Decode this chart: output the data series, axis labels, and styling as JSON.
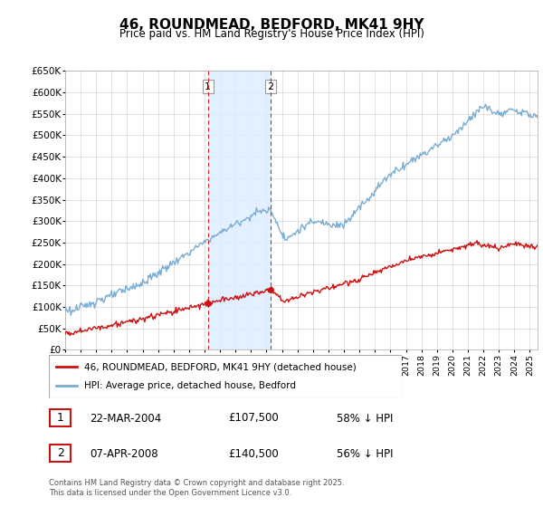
{
  "title": "46, ROUNDMEAD, BEDFORD, MK41 9HY",
  "subtitle": "Price paid vs. HM Land Registry's House Price Index (HPI)",
  "ylabel_ticks": [
    "£0",
    "£50K",
    "£100K",
    "£150K",
    "£200K",
    "£250K",
    "£300K",
    "£350K",
    "£400K",
    "£450K",
    "£500K",
    "£550K",
    "£600K",
    "£650K"
  ],
  "ytick_values": [
    0,
    50000,
    100000,
    150000,
    200000,
    250000,
    300000,
    350000,
    400000,
    450000,
    500000,
    550000,
    600000,
    650000
  ],
  "x_start_year": 1995,
  "x_end_year": 2025,
  "hpi_color": "#7aadd4",
  "price_color": "#cc1111",
  "sale1_year": 2004.22,
  "sale1_price": 107500,
  "sale2_year": 2008.27,
  "sale2_price": 140500,
  "shade_color": "#ddeeff",
  "vline_color": "#dd2222",
  "legend_label_price": "46, ROUNDMEAD, BEDFORD, MK41 9HY (detached house)",
  "legend_label_hpi": "HPI: Average price, detached house, Bedford",
  "table_rows": [
    {
      "num": "1",
      "date": "22-MAR-2004",
      "price": "£107,500",
      "pct": "58% ↓ HPI"
    },
    {
      "num": "2",
      "date": "07-APR-2008",
      "price": "£140,500",
      "pct": "56% ↓ HPI"
    }
  ],
  "footer": "Contains HM Land Registry data © Crown copyright and database right 2025.\nThis data is licensed under the Open Government Licence v3.0.",
  "background_color": "#ffffff",
  "plot_bg_color": "#ffffff",
  "grid_color": "#cccccc"
}
